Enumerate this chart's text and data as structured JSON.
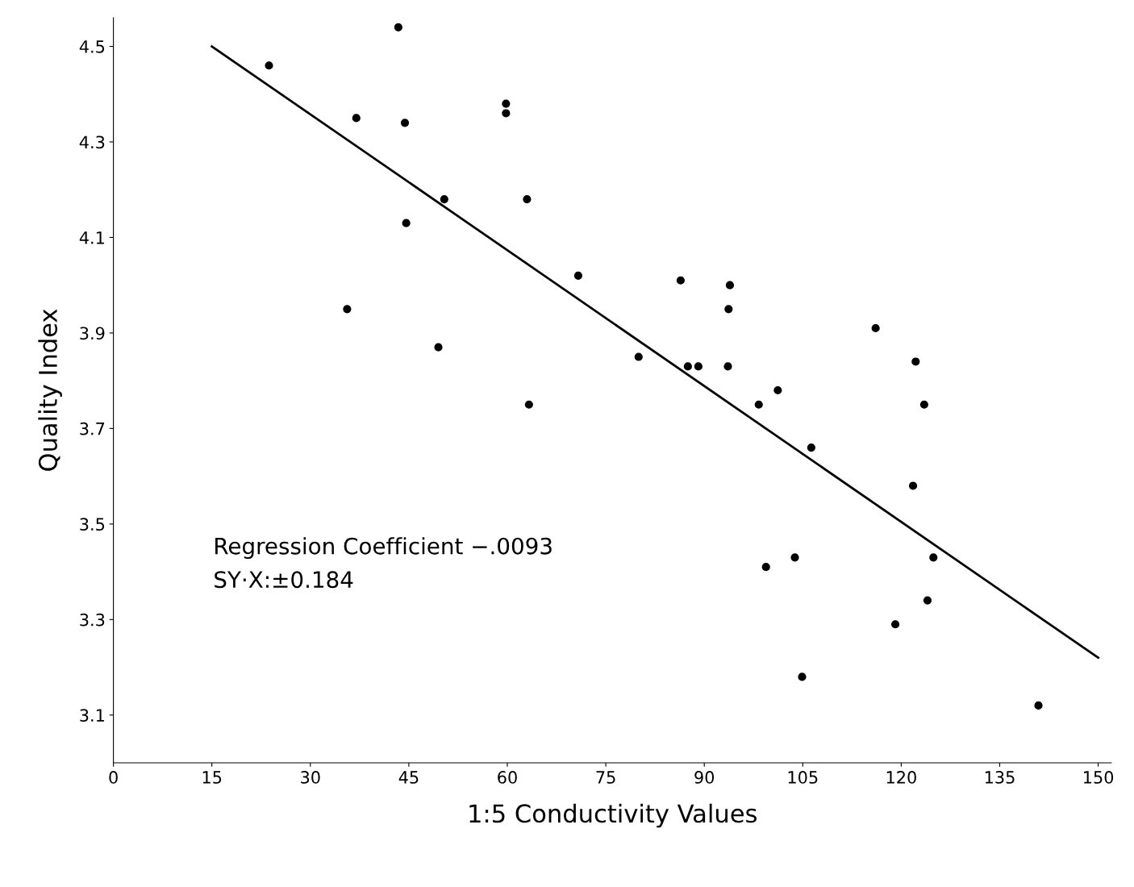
{
  "chart_data": {
    "type": "scatter",
    "xlabel": "1:5 Conductivity Values",
    "ylabel": "Quality Index",
    "annotations": [
      "Regression Coefficient −.0093",
      "SY·X:±0.184"
    ],
    "xlim": [
      0,
      152
    ],
    "xticks": [
      {
        "value": 0,
        "label": "0"
      },
      15,
      30,
      45,
      60,
      75,
      90,
      105,
      120,
      135,
      150
    ],
    "ylim": [
      3.0,
      4.56
    ],
    "yticks": [
      3.1,
      3.3,
      3.5,
      3.7,
      3.9,
      4.1,
      4.3,
      4.5
    ],
    "grid": false,
    "legend": false,
    "series": [
      {
        "color": "#000000",
        "marker": "circle",
        "x": [
          43.4,
          23.7,
          37.0,
          44.4,
          59.8,
          59.8,
          63.0,
          50.4,
          44.6,
          35.6,
          49.5,
          70.8,
          86.4,
          93.9,
          93.7,
          80.0,
          87.5,
          89.1,
          93.6,
          63.3,
          98.3,
          101.2,
          116.1,
          122.2,
          123.5,
          106.3,
          121.8,
          99.4,
          103.8,
          124.9,
          124.0,
          119.1,
          104.9,
          140.9
        ],
        "values": [
          4.54,
          4.46,
          4.35,
          4.34,
          4.38,
          4.36,
          4.18,
          4.18,
          4.13,
          3.95,
          3.87,
          4.02,
          4.01,
          4.0,
          3.95,
          3.85,
          3.83,
          3.83,
          3.83,
          3.75,
          3.75,
          3.78,
          3.91,
          3.84,
          3.75,
          3.66,
          3.58,
          3.41,
          3.43,
          3.43,
          3.34,
          3.29,
          3.18,
          3.12
        ]
      },
      {
        "type": "line",
        "color": "#000000",
        "marker": "none",
        "line_style": "solid",
        "x": [
          15,
          150
        ],
        "values": [
          4.5,
          3.22
        ]
      }
    ]
  }
}
